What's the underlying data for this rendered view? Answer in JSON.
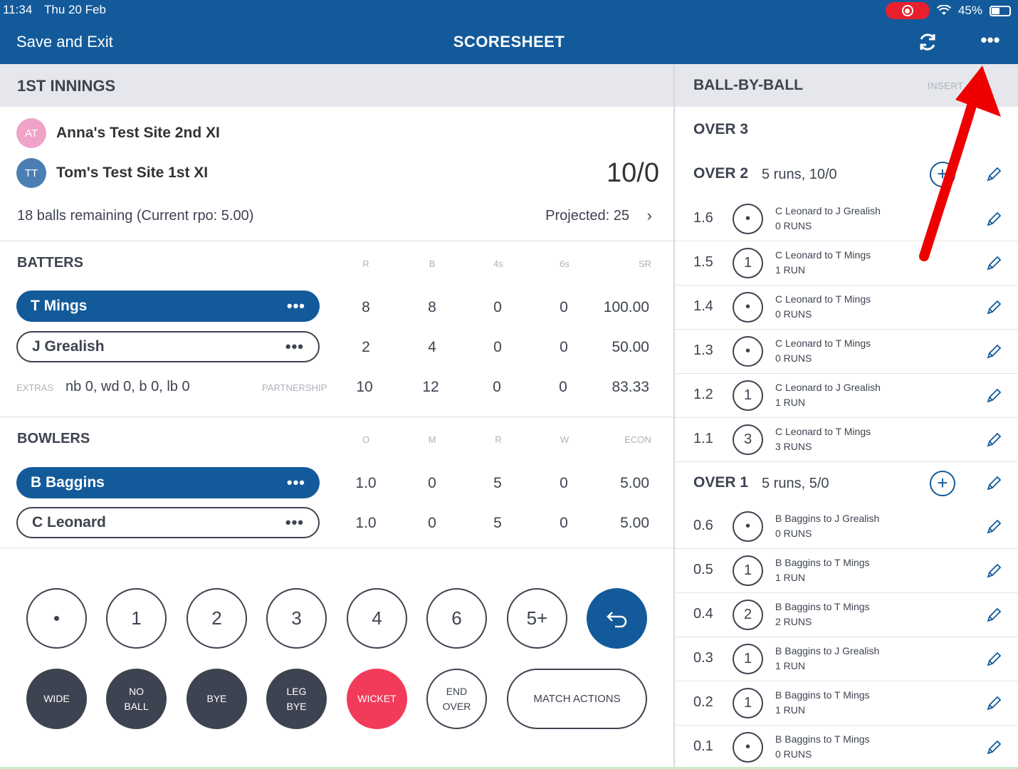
{
  "status": {
    "time": "11:34",
    "date": "Thu 20 Feb",
    "battery": "45%"
  },
  "header": {
    "save_exit": "Save and Exit",
    "title": "SCORESHEET",
    "refresh_icon": "refresh-icon",
    "more_icon": "more-icon"
  },
  "innings": {
    "title": "1ST INNINGS",
    "teams": [
      {
        "initials": "AT",
        "name": "Anna's Test Site 2nd XI",
        "color": "#f0a3c9"
      },
      {
        "initials": "TT",
        "name": "Tom's Test Site 1st XI",
        "color": "#4b7fb3"
      }
    ],
    "score": "10/0",
    "balls_remaining": "18 balls remaining (Current rpo: 5.00)",
    "projected": "Projected: 25"
  },
  "batters": {
    "title": "BATTERS",
    "columns": [
      "R",
      "B",
      "4s",
      "6s",
      "SR"
    ],
    "rows": [
      {
        "name": "T Mings",
        "r": "8",
        "b": "8",
        "fours": "0",
        "sixes": "0",
        "sr": "100.00",
        "active": true
      },
      {
        "name": "J Grealish",
        "r": "2",
        "b": "4",
        "fours": "0",
        "sixes": "0",
        "sr": "50.00",
        "active": false
      }
    ],
    "extras_label": "EXTRAS",
    "extras_value": "nb 0, wd 0, b 0, lb 0",
    "partnership_label": "PARTNERSHIP",
    "partnership": {
      "r": "10",
      "b": "12",
      "fours": "0",
      "sixes": "0",
      "sr": "83.33"
    }
  },
  "bowlers": {
    "title": "BOWLERS",
    "columns": [
      "O",
      "M",
      "R",
      "W",
      "ECON"
    ],
    "rows": [
      {
        "name": "B Baggins",
        "o": "1.0",
        "m": "0",
        "r": "5",
        "w": "0",
        "econ": "5.00",
        "active": true
      },
      {
        "name": "C Leonard",
        "o": "1.0",
        "m": "0",
        "r": "5",
        "w": "0",
        "econ": "5.00",
        "active": false
      }
    ]
  },
  "scoring": {
    "runs": [
      "•",
      "1",
      "2",
      "3",
      "4",
      "6",
      "5+"
    ],
    "extras_buttons": [
      "WIDE",
      "NO BALL",
      "BYE",
      "LEG BYE",
      "WICKET",
      "END OVER"
    ],
    "match_actions": "MATCH ACTIONS"
  },
  "ball_by_ball": {
    "title": "BALL-BY-BALL",
    "insert_label": "INSERT",
    "over3": "OVER 3",
    "over2": {
      "title": "OVER 2",
      "summary": "5 runs, 10/0"
    },
    "over1": {
      "title": "OVER 1",
      "summary": "5 runs, 5/0"
    },
    "balls_over2": [
      {
        "num": "1.6",
        "value": "•",
        "line1": "C Leonard to J Grealish",
        "line2": "0 RUNS"
      },
      {
        "num": "1.5",
        "value": "1",
        "line1": "C Leonard to T Mings",
        "line2": "1 RUN"
      },
      {
        "num": "1.4",
        "value": "•",
        "line1": "C Leonard to T Mings",
        "line2": "0 RUNS"
      },
      {
        "num": "1.3",
        "value": "•",
        "line1": "C Leonard to T Mings",
        "line2": "0 RUNS"
      },
      {
        "num": "1.2",
        "value": "1",
        "line1": "C Leonard to J Grealish",
        "line2": "1 RUN"
      },
      {
        "num": "1.1",
        "value": "3",
        "line1": "C Leonard to T Mings",
        "line2": "3 RUNS"
      }
    ],
    "balls_over1": [
      {
        "num": "0.6",
        "value": "•",
        "line1": "B Baggins to J Grealish",
        "line2": "0 RUNS"
      },
      {
        "num": "0.5",
        "value": "1",
        "line1": "B Baggins to T Mings",
        "line2": "1 RUN"
      },
      {
        "num": "0.4",
        "value": "2",
        "line1": "B Baggins to T Mings",
        "line2": "2 RUNS"
      },
      {
        "num": "0.3",
        "value": "1",
        "line1": "B Baggins to J Grealish",
        "line2": "1 RUN"
      },
      {
        "num": "0.2",
        "value": "1",
        "line1": "B Baggins to T Mings",
        "line2": "1 RUN"
      },
      {
        "num": "0.1",
        "value": "•",
        "line1": "B Baggins to T Mings",
        "line2": "0 RUNS"
      }
    ]
  },
  "colors": {
    "brand": "#135a9a",
    "wicket": "#f23b5a",
    "dark": "#3d4350",
    "annotation_arrow": "#ee0000"
  }
}
